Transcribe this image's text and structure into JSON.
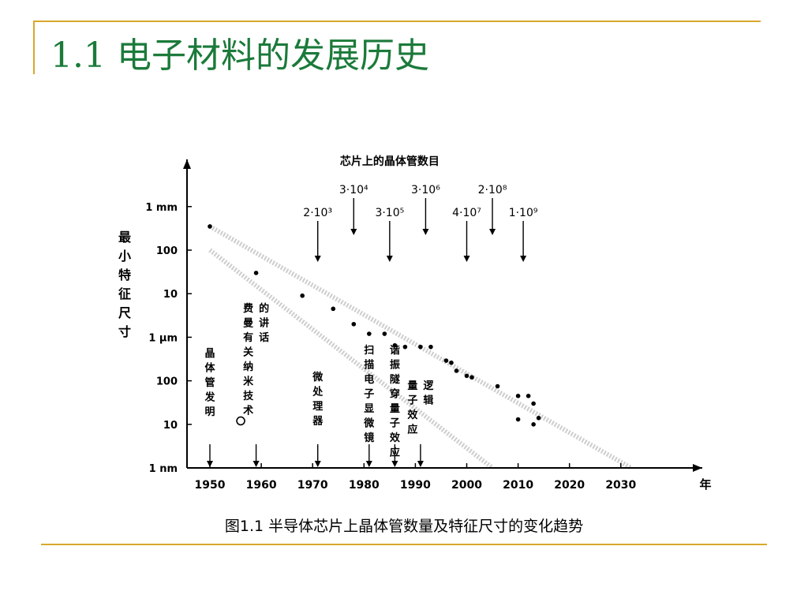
{
  "slide": {
    "title": "1.1 电子材料的发展历史",
    "caption": "图1.1 半导体芯片上晶体管数量及特征尺寸的变化趋势"
  },
  "colors": {
    "accent_rule": "#d9a82c",
    "title": "#1b7a3a",
    "chart_ink": "#000000",
    "trend_band": "#c8c8c8"
  },
  "chart_data": {
    "type": "scatter",
    "y_scale": "log",
    "x_axis_label": "年",
    "y_axis_label": "最小特征尺寸",
    "x_ticks": [
      "1950",
      "1960",
      "1970",
      "1980",
      "1990",
      "2000",
      "2010",
      "2020",
      "2030"
    ],
    "y_ticks": [
      {
        "label": "1 mm",
        "nm": 1000000
      },
      {
        "label": "100",
        "nm": 100000
      },
      {
        "label": "10",
        "nm": 10000
      },
      {
        "label": "1 μm",
        "nm": 1000
      },
      {
        "label": "100",
        "nm": 100
      },
      {
        "label": "10",
        "nm": 10
      },
      {
        "label": "1 nm",
        "nm": 1
      }
    ],
    "xlim": [
      1947,
      2033
    ],
    "ylim_nm": [
      1,
      1000000
    ],
    "points": [
      {
        "x": 1950,
        "y_nm": 350000,
        "marker": "dot"
      },
      {
        "x": 1959,
        "y_nm": 30000,
        "marker": "dot"
      },
      {
        "x": 1968,
        "y_nm": 9000,
        "marker": "dot"
      },
      {
        "x": 1974,
        "y_nm": 4500,
        "marker": "dot"
      },
      {
        "x": 1978,
        "y_nm": 2000,
        "marker": "dot"
      },
      {
        "x": 1981,
        "y_nm": 1200,
        "marker": "dot"
      },
      {
        "x": 1984,
        "y_nm": 1200,
        "marker": "dot"
      },
      {
        "x": 1986,
        "y_nm": 650,
        "marker": "dot"
      },
      {
        "x": 1988,
        "y_nm": 600,
        "marker": "dot"
      },
      {
        "x": 1991,
        "y_nm": 600,
        "marker": "dot"
      },
      {
        "x": 1993,
        "y_nm": 600,
        "marker": "dot"
      },
      {
        "x": 1996,
        "y_nm": 290,
        "marker": "dot"
      },
      {
        "x": 1997,
        "y_nm": 260,
        "marker": "dot"
      },
      {
        "x": 1998,
        "y_nm": 170,
        "marker": "dot"
      },
      {
        "x": 2000,
        "y_nm": 130,
        "marker": "dot"
      },
      {
        "x": 2001,
        "y_nm": 120,
        "marker": "dot"
      },
      {
        "x": 2006,
        "y_nm": 75,
        "marker": "dot"
      },
      {
        "x": 2010,
        "y_nm": 45,
        "marker": "dot"
      },
      {
        "x": 2012,
        "y_nm": 45,
        "marker": "dot"
      },
      {
        "x": 2013,
        "y_nm": 30,
        "marker": "dot"
      },
      {
        "x": 2010,
        "y_nm": 13,
        "marker": "dot"
      },
      {
        "x": 2014,
        "y_nm": 14,
        "marker": "dot"
      },
      {
        "x": 2013,
        "y_nm": 10,
        "marker": "dot"
      },
      {
        "x": 1956,
        "y_nm": 12,
        "marker": "circle"
      }
    ],
    "trend_lines": [
      {
        "from": {
          "x": 1950,
          "y_nm": 350000
        },
        "to": {
          "x": 2032,
          "y_nm": 1
        }
      },
      {
        "from": {
          "x": 1950,
          "y_nm": 100000
        },
        "to": {
          "x": 2005,
          "y_nm": 1
        }
      }
    ],
    "transistor_count": {
      "title": "芯片上的晶体管数目",
      "markers": [
        {
          "x": 1971,
          "label": "2·10³",
          "row": 2
        },
        {
          "x": 1978,
          "label": "3·10⁴",
          "row": 1
        },
        {
          "x": 1985,
          "label": "3·10⁵",
          "row": 2
        },
        {
          "x": 1992,
          "label": "3·10⁶",
          "row": 1
        },
        {
          "x": 2000,
          "label": "4·10⁷",
          "row": 2
        },
        {
          "x": 2005,
          "label": "2·10⁸",
          "row": 1
        },
        {
          "x": 2011,
          "label": "1·10⁹",
          "row": 2
        }
      ]
    },
    "events": [
      {
        "label": "晶体管发明",
        "x": 1950,
        "columns": [
          "晶体管发明"
        ]
      },
      {
        "label": "费曼有关纳米技术的讲话",
        "x": 1959,
        "columns": [
          "费曼有关纳米技术",
          "的讲话"
        ]
      },
      {
        "label": "微处理器",
        "x": 1971,
        "columns": [
          "微处理器"
        ]
      },
      {
        "label": "扫描电子显微镜",
        "x": 1981,
        "columns": [
          "扫描电子显微镜"
        ]
      },
      {
        "label": "谐振隧穿量子效应",
        "x": 1986,
        "columns": [
          "谐振隧穿量子效应"
        ]
      },
      {
        "label": "量子效应逻辑",
        "x": 1991,
        "columns": [
          "量子效应",
          "逻辑"
        ]
      }
    ]
  }
}
